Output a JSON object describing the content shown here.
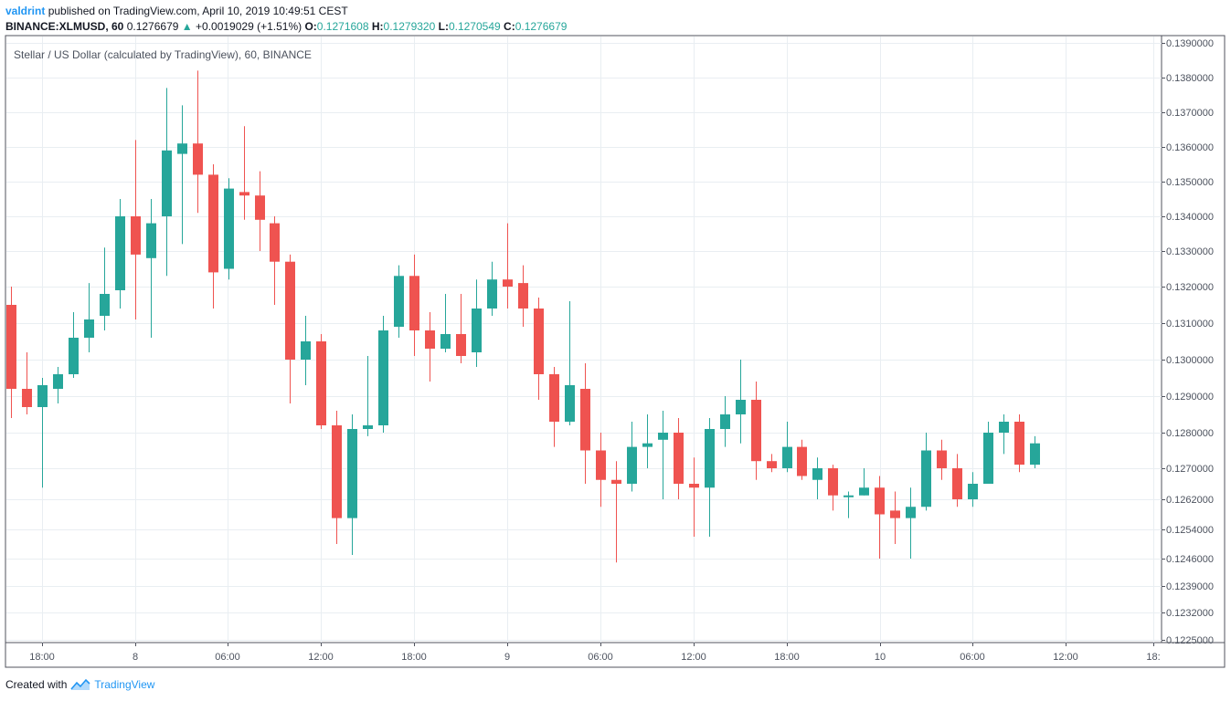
{
  "header": {
    "author": "valdrint",
    "published_text": "published on TradingView.com, April 10, 2019 10:49:51 CEST"
  },
  "ohlc": {
    "symbol": "BINANCE:XLMUSD, 60",
    "last": "0.1276679",
    "change": "+0.0019029 (+1.51%)",
    "o_label": "O:",
    "o": "0.1271608",
    "h_label": "H:",
    "h": "0.1279320",
    "l_label": "L:",
    "l": "0.1270549",
    "c_label": "C:",
    "c": "0.1276679"
  },
  "footer": {
    "created_with": "Created with",
    "brand": "TradingView"
  },
  "colors": {
    "up": "#26a69a",
    "down": "#ef5350",
    "grid": "#e9eef2",
    "axis": "#4c525e",
    "brand": "#2196f3"
  },
  "chart_data": {
    "type": "candlestick",
    "title": "Stellar / US Dollar (calculated by TradingView), 60, BINANCE",
    "price_ticks": [
      "0.1390000",
      "0.1380000",
      "0.1370000",
      "0.1360000",
      "0.1350000",
      "0.1340000",
      "0.1330000",
      "0.1320000",
      "0.1310000",
      "0.1300000",
      "0.1290000",
      "0.1280000",
      "0.1270000",
      "0.1262000",
      "0.1254000",
      "0.1246000",
      "0.1239000",
      "0.1232000",
      "0.1225000"
    ],
    "time_ticks": [
      "18:00",
      "8",
      "06:00",
      "12:00",
      "18:00",
      "9",
      "06:00",
      "12:00",
      "18:00",
      "10",
      "06:00",
      "12:00",
      "18:"
    ],
    "grid": true,
    "candles": [
      [
        0.1315,
        0.132,
        0.1284,
        0.1292
      ],
      [
        0.1292,
        0.1302,
        0.1285,
        0.1287
      ],
      [
        0.1287,
        0.1295,
        0.1265,
        0.1293
      ],
      [
        0.1292,
        0.1298,
        0.1288,
        0.1296
      ],
      [
        0.1296,
        0.1313,
        0.1295,
        0.1306
      ],
      [
        0.1306,
        0.1321,
        0.1302,
        0.1311
      ],
      [
        0.1312,
        0.1331,
        0.1308,
        0.1318
      ],
      [
        0.1319,
        0.1345,
        0.1314,
        0.134
      ],
      [
        0.134,
        0.1362,
        0.1311,
        0.1329
      ],
      [
        0.1328,
        0.1345,
        0.1306,
        0.1338
      ],
      [
        0.134,
        0.1377,
        0.1323,
        0.1359
      ],
      [
        0.1358,
        0.1372,
        0.1332,
        0.1361
      ],
      [
        0.1361,
        0.1382,
        0.1341,
        0.1352
      ],
      [
        0.1352,
        0.1355,
        0.1314,
        0.1324
      ],
      [
        0.1325,
        0.1351,
        0.1322,
        0.1348
      ],
      [
        0.1347,
        0.1366,
        0.1339,
        0.1346
      ],
      [
        0.1346,
        0.1353,
        0.133,
        0.1339
      ],
      [
        0.1338,
        0.134,
        0.1315,
        0.1327
      ],
      [
        0.1327,
        0.1329,
        0.1288,
        0.13
      ],
      [
        0.13,
        0.1312,
        0.1293,
        0.1305
      ],
      [
        0.1305,
        0.1307,
        0.1281,
        0.1282
      ],
      [
        0.1282,
        0.1286,
        0.125,
        0.1257
      ],
      [
        0.1257,
        0.1285,
        0.1247,
        0.1281
      ],
      [
        0.1281,
        0.1301,
        0.1279,
        0.1282
      ],
      [
        0.1282,
        0.1312,
        0.128,
        0.1308
      ],
      [
        0.1309,
        0.1326,
        0.1306,
        0.1323
      ],
      [
        0.1323,
        0.1329,
        0.1301,
        0.1308
      ],
      [
        0.1308,
        0.1313,
        0.1294,
        0.1303
      ],
      [
        0.1303,
        0.1318,
        0.1302,
        0.1307
      ],
      [
        0.1307,
        0.1318,
        0.1299,
        0.1301
      ],
      [
        0.1302,
        0.1322,
        0.1298,
        0.1314
      ],
      [
        0.1314,
        0.1327,
        0.1312,
        0.1322
      ],
      [
        0.1322,
        0.1338,
        0.1314,
        0.132
      ],
      [
        0.1321,
        0.1326,
        0.1309,
        0.1314
      ],
      [
        0.1314,
        0.1317,
        0.1289,
        0.1296
      ],
      [
        0.1296,
        0.1298,
        0.1276,
        0.1283
      ],
      [
        0.1283,
        0.1316,
        0.1282,
        0.1293
      ],
      [
        0.1292,
        0.1299,
        0.1266,
        0.1275
      ],
      [
        0.1275,
        0.128,
        0.126,
        0.1267
      ],
      [
        0.1267,
        0.1272,
        0.1245,
        0.1266
      ],
      [
        0.1266,
        0.1283,
        0.1264,
        0.1276
      ],
      [
        0.1276,
        0.1285,
        0.127,
        0.1277
      ],
      [
        0.1278,
        0.1286,
        0.1262,
        0.128
      ],
      [
        0.128,
        0.1284,
        0.1262,
        0.1266
      ],
      [
        0.1266,
        0.1273,
        0.1252,
        0.1265
      ],
      [
        0.1265,
        0.1284,
        0.1252,
        0.1281
      ],
      [
        0.1281,
        0.129,
        0.1276,
        0.1285
      ],
      [
        0.1285,
        0.13,
        0.1277,
        0.1289
      ],
      [
        0.1289,
        0.1294,
        0.1267,
        0.1272
      ],
      [
        0.1272,
        0.1274,
        0.1269,
        0.127
      ],
      [
        0.127,
        0.1283,
        0.1269,
        0.1276
      ],
      [
        0.1276,
        0.1278,
        0.1267,
        0.1268
      ],
      [
        0.1267,
        0.1273,
        0.1262,
        0.127
      ],
      [
        0.127,
        0.1271,
        0.1259,
        0.1263
      ],
      [
        0.1263,
        0.1264,
        0.1257,
        0.1263
      ],
      [
        0.1263,
        0.127,
        0.1263,
        0.1265
      ],
      [
        0.1265,
        0.1268,
        0.1246,
        0.1258
      ],
      [
        0.1259,
        0.1264,
        0.125,
        0.1257
      ],
      [
        0.1257,
        0.1265,
        0.1246,
        0.126
      ],
      [
        0.126,
        0.128,
        0.1259,
        0.1275
      ],
      [
        0.1275,
        0.1278,
        0.1267,
        0.127
      ],
      [
        0.127,
        0.1274,
        0.126,
        0.1262
      ],
      [
        0.1262,
        0.1269,
        0.126,
        0.1266
      ],
      [
        0.1266,
        0.1283,
        0.1266,
        0.128
      ],
      [
        0.128,
        0.1285,
        0.1274,
        0.1283
      ],
      [
        0.1283,
        0.1285,
        0.1269,
        0.1271
      ],
      [
        0.1271,
        0.1279,
        0.127,
        0.1277
      ]
    ]
  }
}
